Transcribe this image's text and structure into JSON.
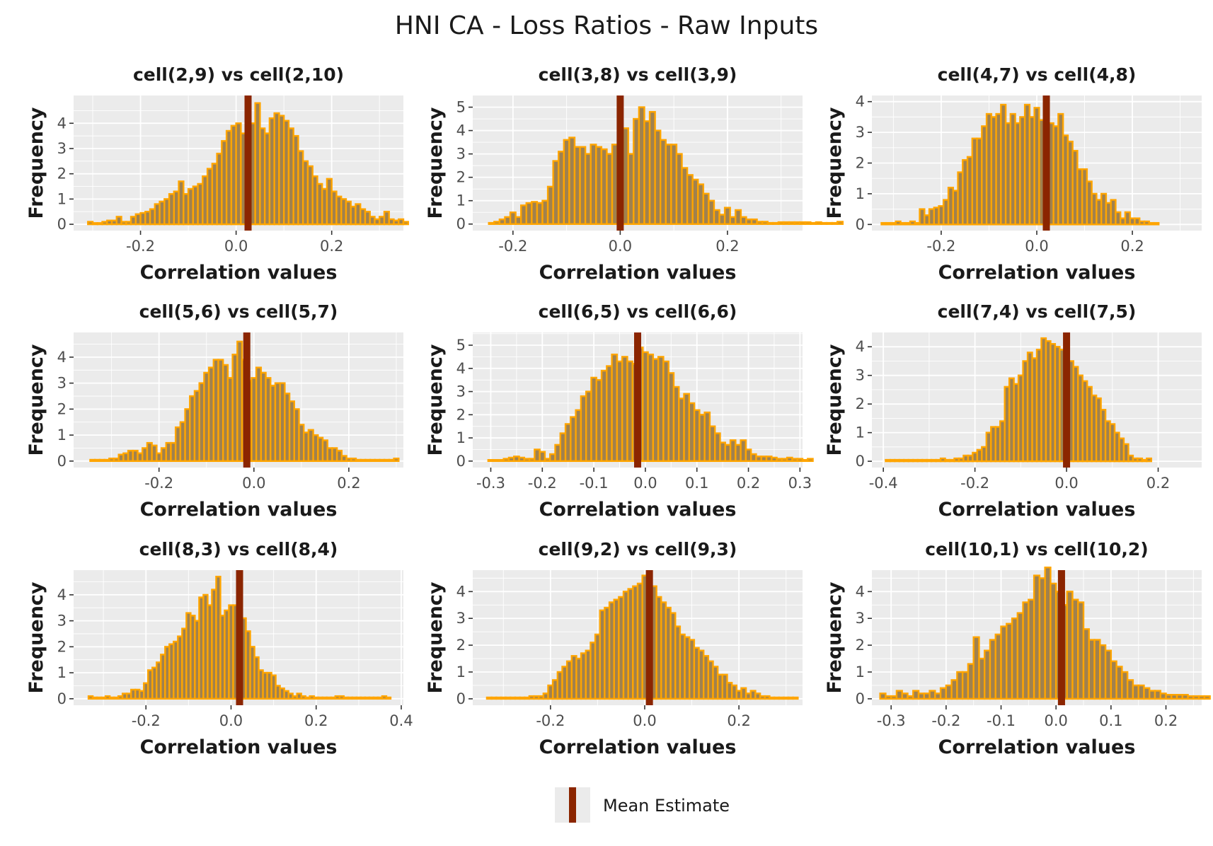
{
  "title": "HNI CA - Loss Ratios - Raw Inputs",
  "legend": {
    "label": "Mean Estimate",
    "color": "#8b2500"
  },
  "colors": {
    "bar_fill": "#a0814e",
    "bar_outline": "#ffa500",
    "mean_line": "#8b2500",
    "panel_bg": "#ebebeb",
    "grid": "#ffffff"
  },
  "chart_data": [
    {
      "type": "bar",
      "title": "cell(2,9) vs cell(2,10)",
      "xlabel": "Correlation values",
      "ylabel": "Frequency",
      "xlim": [
        -0.34,
        0.35
      ],
      "ylim": [
        -0.25,
        5.1
      ],
      "xticks": [
        -0.2,
        0.0,
        0.2
      ],
      "xtick_labels": [
        "-0.2",
        "0.0",
        "0.2"
      ],
      "yticks": [
        0,
        1,
        2,
        3,
        4
      ],
      "ytick_labels": [
        "0",
        "1",
        "2",
        "3",
        "4"
      ],
      "mean": 0.025,
      "bin_start": -0.31,
      "bin_width": 0.01,
      "values": [
        0.1,
        0.05,
        0.05,
        0.1,
        0.15,
        0.15,
        0.3,
        0.1,
        0.1,
        0.3,
        0.4,
        0.45,
        0.5,
        0.6,
        0.8,
        0.9,
        1.0,
        1.2,
        1.3,
        1.7,
        1.2,
        1.4,
        1.5,
        1.6,
        1.9,
        2.2,
        2.4,
        2.8,
        3.3,
        3.7,
        3.9,
        4.0,
        3.6,
        3.9,
        4.0,
        4.8,
        3.8,
        3.6,
        4.2,
        4.4,
        4.3,
        4.1,
        3.8,
        3.5,
        2.9,
        2.5,
        2.3,
        1.9,
        1.6,
        1.4,
        1.8,
        1.3,
        1.1,
        1.0,
        0.9,
        0.7,
        0.8,
        0.6,
        0.5,
        0.3,
        0.2,
        0.3,
        0.5,
        0.2,
        0.15,
        0.2,
        0.1
      ]
    },
    {
      "type": "bar",
      "title": "cell(3,8) vs cell(3,9)",
      "xlabel": "Correlation values",
      "ylabel": "Frequency",
      "xlim": [
        -0.275,
        0.34
      ],
      "ylim": [
        -0.28,
        5.5
      ],
      "xticks": [
        -0.2,
        0.0,
        0.2
      ],
      "xtick_labels": [
        "-0.2",
        "0.0",
        "0.2"
      ],
      "yticks": [
        0,
        1,
        2,
        3,
        4,
        5
      ],
      "ytick_labels": [
        "0",
        "1",
        "2",
        "3",
        "4",
        "5"
      ],
      "mean": 0.0,
      "bin_start": -0.245,
      "bin_width": 0.01,
      "values": [
        0.05,
        0.1,
        0.2,
        0.3,
        0.5,
        0.3,
        0.8,
        0.9,
        0.95,
        0.9,
        1.0,
        1.6,
        2.7,
        3.1,
        3.6,
        3.7,
        3.3,
        3.3,
        3.0,
        3.4,
        3.3,
        3.2,
        3.0,
        3.4,
        3.2,
        4.1,
        3.0,
        4.5,
        5.0,
        4.4,
        4.8,
        4.0,
        3.6,
        3.4,
        3.4,
        3.0,
        2.4,
        2.1,
        1.9,
        1.7,
        1.3,
        1.0,
        0.6,
        0.4,
        0.7,
        0.3,
        0.6,
        0.3,
        0.2,
        0.2,
        0.1,
        0.1,
        0.05,
        0.05,
        0.08,
        0.08,
        0.08,
        0.08,
        0.08,
        0.08,
        0.05,
        0.08,
        0.05,
        0.05,
        0.05,
        0.1
      ]
    },
    {
      "type": "bar",
      "title": "cell(4,7) vs cell(4,8)",
      "xlabel": "Correlation values",
      "ylabel": "Frequency",
      "xlim": [
        -0.345,
        0.345
      ],
      "ylim": [
        -0.2,
        4.2
      ],
      "xticks": [
        -0.2,
        0.0,
        0.2
      ],
      "xtick_labels": [
        "-0.2",
        "0.0",
        "0.2"
      ],
      "yticks": [
        0,
        1,
        2,
        3,
        4
      ],
      "ytick_labels": [
        "0",
        "1",
        "2",
        "3",
        "4"
      ],
      "mean": 0.02,
      "bin_start": -0.325,
      "bin_width": 0.01,
      "values": [
        0.05,
        0.05,
        0.05,
        0.1,
        0.05,
        0.05,
        0.1,
        0.05,
        0.5,
        0.3,
        0.5,
        0.55,
        0.6,
        0.8,
        1.2,
        1.1,
        1.7,
        2.1,
        2.2,
        2.8,
        2.8,
        3.2,
        3.6,
        3.5,
        3.6,
        3.9,
        3.3,
        3.6,
        3.3,
        3.5,
        3.9,
        3.5,
        3.8,
        3.4,
        3.3,
        3.3,
        3.2,
        3.6,
        2.9,
        2.7,
        2.4,
        1.8,
        1.8,
        1.4,
        1.0,
        0.8,
        1.0,
        0.7,
        0.8,
        0.4,
        0.2,
        0.4,
        0.2,
        0.2,
        0.1,
        0.1,
        0.05,
        0.05
      ]
    },
    {
      "type": "bar",
      "title": "cell(5,6) vs cell(5,7)",
      "xlabel": "Correlation values",
      "ylabel": "Frequency",
      "xlim": [
        -0.38,
        0.315
      ],
      "ylim": [
        -0.25,
        4.95
      ],
      "xticks": [
        -0.2,
        0.0,
        0.2
      ],
      "xtick_labels": [
        "-0.2",
        "0.0",
        "0.2"
      ],
      "yticks": [
        0,
        1,
        2,
        3,
        4
      ],
      "ytick_labels": [
        "0",
        "1",
        "2",
        "3",
        "4"
      ],
      "mean": -0.015,
      "bin_start": -0.345,
      "bin_width": 0.01,
      "values": [
        0.05,
        0.05,
        0.05,
        0.05,
        0.1,
        0.1,
        0.25,
        0.3,
        0.4,
        0.4,
        0.3,
        0.5,
        0.7,
        0.6,
        0.3,
        0.5,
        0.7,
        0.7,
        1.3,
        1.5,
        2.0,
        2.5,
        2.7,
        3.0,
        3.4,
        3.6,
        3.9,
        3.9,
        3.7,
        3.2,
        4.1,
        4.6,
        3.9,
        3.1,
        3.2,
        3.6,
        3.4,
        3.2,
        2.9,
        3.0,
        3.0,
        2.6,
        2.3,
        2.0,
        1.4,
        1.1,
        1.2,
        1.0,
        0.9,
        0.8,
        0.5,
        0.5,
        0.4,
        0.2,
        0.1,
        0.1,
        0.05,
        0.05,
        0.05,
        0.05,
        0.05,
        0.05,
        0.05,
        0.05,
        0.1
      ]
    },
    {
      "type": "bar",
      "title": "cell(6,5) vs cell(6,6)",
      "xlabel": "Correlation values",
      "ylabel": "Frequency",
      "xlim": [
        -0.335,
        0.305
      ],
      "ylim": [
        -0.28,
        5.55
      ],
      "xticks": [
        -0.3,
        -0.2,
        -0.1,
        0.0,
        0.1,
        0.2,
        0.3
      ],
      "xtick_labels": [
        "-0.3",
        "-0.2",
        "-0.1",
        "0.0",
        "0.1",
        "0.2",
        "0.3"
      ],
      "yticks": [
        0,
        1,
        2,
        3,
        4,
        5
      ],
      "ytick_labels": [
        "0",
        "1",
        "2",
        "3",
        "4",
        "5"
      ],
      "mean": -0.015,
      "bin_start": -0.305,
      "bin_width": 0.01,
      "values": [
        0.05,
        0.05,
        0.05,
        0.1,
        0.15,
        0.2,
        0.15,
        0.1,
        0.1,
        0.5,
        0.4,
        0.1,
        0.3,
        0.7,
        1.2,
        1.6,
        1.9,
        2.2,
        2.8,
        3.0,
        3.6,
        3.5,
        3.9,
        4.1,
        4.6,
        4.3,
        4.5,
        4.3,
        4.2,
        4.9,
        4.7,
        4.6,
        4.4,
        4.5,
        4.3,
        3.8,
        3.2,
        2.7,
        2.9,
        2.5,
        2.2,
        2.0,
        2.1,
        1.5,
        1.2,
        0.8,
        0.7,
        0.9,
        0.7,
        0.9,
        0.5,
        0.3,
        0.2,
        0.2,
        0.2,
        0.15,
        0.1,
        0.1,
        0.15,
        0.1,
        0.1,
        0.05,
        0.1
      ]
    },
    {
      "type": "bar",
      "title": "cell(7,4) vs cell(7,5)",
      "xlabel": "Correlation values",
      "ylabel": "Frequency",
      "xlim": [
        -0.425,
        0.295
      ],
      "ylim": [
        -0.22,
        4.5
      ],
      "xticks": [
        -0.4,
        -0.2,
        0.0,
        0.2
      ],
      "xtick_labels": [
        "-0.4",
        "-0.2",
        "0.0",
        "0.2"
      ],
      "yticks": [
        0,
        1,
        2,
        3,
        4
      ],
      "ytick_labels": [
        "0",
        "1",
        "2",
        "3",
        "4"
      ],
      "mean": 0.0,
      "bin_start": -0.395,
      "bin_width": 0.01,
      "values": [
        0.05,
        0.05,
        0.05,
        0.05,
        0.05,
        0.05,
        0.05,
        0.05,
        0.05,
        0.05,
        0.05,
        0.05,
        0.1,
        0.05,
        0.05,
        0.1,
        0.1,
        0.2,
        0.2,
        0.3,
        0.4,
        0.5,
        1.0,
        1.2,
        1.2,
        1.4,
        2.6,
        2.9,
        2.7,
        3.0,
        3.5,
        3.8,
        3.6,
        3.9,
        4.3,
        4.2,
        4.1,
        4.0,
        3.9,
        3.6,
        3.5,
        3.3,
        3.0,
        2.8,
        2.6,
        2.3,
        2.2,
        1.8,
        1.4,
        1.3,
        1.0,
        0.8,
        0.6,
        0.2,
        0.1,
        0.1,
        0.05,
        0.1
      ]
    },
    {
      "type": "bar",
      "title": "cell(8,3) vs cell(8,4)",
      "xlabel": "Correlation values",
      "ylabel": "Frequency",
      "xlim": [
        -0.37,
        0.405
      ],
      "ylim": [
        -0.25,
        4.95
      ],
      "xticks": [
        -0.2,
        0.0,
        0.2,
        0.4
      ],
      "xtick_labels": [
        "-0.2",
        "0.0",
        "0.2",
        "0.4"
      ],
      "yticks": [
        0,
        1,
        2,
        3,
        4
      ],
      "ytick_labels": [
        "0",
        "1",
        "2",
        "3",
        "4"
      ],
      "mean": 0.02,
      "bin_start": -0.335,
      "bin_width": 0.01,
      "values": [
        0.1,
        0.05,
        0.05,
        0.05,
        0.1,
        0.05,
        0.05,
        0.1,
        0.2,
        0.2,
        0.35,
        0.35,
        0.3,
        0.6,
        1.1,
        1.2,
        1.4,
        1.7,
        2.0,
        2.1,
        2.2,
        2.4,
        2.7,
        3.3,
        3.2,
        3.0,
        3.9,
        4.0,
        3.6,
        4.2,
        4.7,
        3.2,
        3.4,
        3.6,
        3.6,
        3.6,
        3.1,
        2.6,
        2.0,
        1.6,
        1.1,
        1.0,
        1.0,
        0.9,
        0.5,
        0.4,
        0.3,
        0.2,
        0.1,
        0.2,
        0.1,
        0.05,
        0.1,
        0.05,
        0.05,
        0.05,
        0.05,
        0.05,
        0.1,
        0.1,
        0.05,
        0.05,
        0.05,
        0.05,
        0.05,
        0.05,
        0.05,
        0.05,
        0.05,
        0.1,
        0.05
      ]
    },
    {
      "type": "bar",
      "title": "cell(9,2) vs cell(9,3)",
      "xlabel": "Correlation values",
      "ylabel": "Frequency",
      "xlim": [
        -0.365,
        0.335
      ],
      "ylim": [
        -0.24,
        4.8
      ],
      "xticks": [
        -0.2,
        0.0,
        0.2
      ],
      "xtick_labels": [
        "-0.2",
        "0.0",
        "0.2"
      ],
      "yticks": [
        0,
        1,
        2,
        3,
        4
      ],
      "ytick_labels": [
        "0",
        "1",
        "2",
        "3",
        "4"
      ],
      "mean": 0.01,
      "bin_start": -0.335,
      "bin_width": 0.01,
      "values": [
        0.05,
        0.05,
        0.05,
        0.05,
        0.05,
        0.05,
        0.05,
        0.05,
        0.05,
        0.1,
        0.1,
        0.1,
        0.2,
        0.5,
        0.7,
        1.0,
        1.2,
        1.4,
        1.6,
        1.5,
        1.7,
        1.8,
        2.1,
        2.4,
        3.3,
        3.4,
        3.6,
        3.7,
        3.8,
        4.0,
        4.1,
        4.2,
        4.3,
        4.6,
        4.7,
        4.2,
        3.8,
        3.6,
        3.4,
        3.2,
        2.7,
        2.4,
        2.3,
        2.2,
        1.9,
        1.8,
        1.6,
        1.4,
        1.2,
        0.9,
        0.9,
        0.6,
        0.5,
        0.3,
        0.4,
        0.2,
        0.3,
        0.2,
        0.1,
        0.1,
        0.05,
        0.05,
        0.05,
        0.05,
        0.05,
        0.05
      ]
    },
    {
      "type": "bar",
      "title": "cell(10,1) vs cell(10,2)",
      "xlabel": "Correlation values",
      "ylabel": "Frequency",
      "xlim": [
        -0.335,
        0.265
      ],
      "ylim": [
        -0.24,
        4.8
      ],
      "xticks": [
        -0.3,
        -0.2,
        -0.1,
        0.0,
        0.1,
        0.2
      ],
      "xtick_labels": [
        "-0.3",
        "-0.2",
        "-0.1",
        "0.0",
        "0.1",
        "0.2"
      ],
      "yticks": [
        0,
        1,
        2,
        3,
        4
      ],
      "ytick_labels": [
        "0",
        "1",
        "2",
        "3",
        "4"
      ],
      "mean": 0.01,
      "bin_start": -0.32,
      "bin_width": 0.01,
      "values": [
        0.2,
        0.1,
        0.1,
        0.3,
        0.2,
        0.1,
        0.3,
        0.2,
        0.2,
        0.3,
        0.2,
        0.4,
        0.5,
        0.7,
        1.0,
        1.0,
        1.3,
        2.3,
        1.5,
        1.8,
        2.2,
        2.4,
        2.7,
        2.8,
        3.0,
        3.2,
        3.6,
        3.7,
        4.6,
        4.5,
        4.9,
        4.3,
        4.0,
        3.5,
        4.0,
        3.7,
        3.6,
        2.6,
        2.2,
        2.2,
        2.0,
        1.8,
        1.4,
        1.2,
        1.0,
        0.7,
        0.5,
        0.5,
        0.4,
        0.3,
        0.3,
        0.2,
        0.15,
        0.15,
        0.15,
        0.15,
        0.1,
        0.1,
        0.1,
        0.1
      ]
    }
  ]
}
